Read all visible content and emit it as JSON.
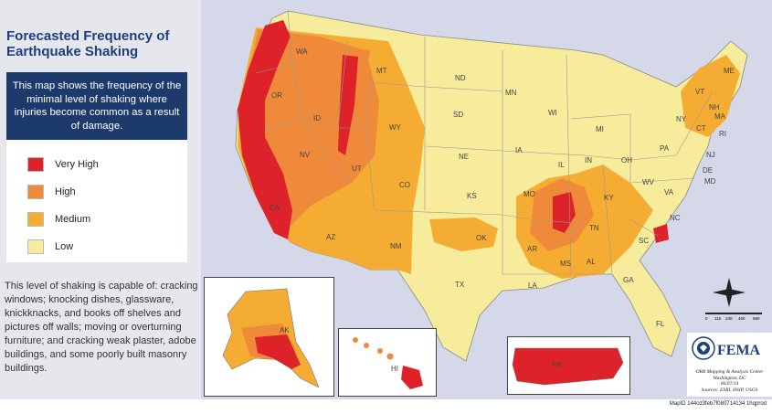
{
  "title": "Forecasted Frequency of Earthquake Shaking",
  "description": "This map shows the frequency of the minimal level of shaking where injuries become common as a result of damage.",
  "legend": [
    {
      "label": "Very High",
      "color": "#dd2229"
    },
    {
      "label": "High",
      "color": "#ef8a3a"
    },
    {
      "label": "Medium",
      "color": "#f5ac33"
    },
    {
      "label": "Low",
      "color": "#f7eb9c"
    }
  ],
  "note": "This level of shaking is capable of: cracking windows; knocking dishes, glassware, knickknacks, and books off shelves and pictures off walls; moving or overturning furniture; and cracking weak plaster, adobe buildings, and some poorly built masonry buildings.",
  "states": [
    "WA",
    "OR",
    "CA",
    "NV",
    "ID",
    "MT",
    "WY",
    "UT",
    "AZ",
    "NM",
    "CO",
    "ND",
    "SD",
    "NE",
    "KS",
    "OK",
    "TX",
    "MN",
    "IA",
    "MO",
    "AR",
    "LA",
    "WI",
    "IL",
    "MS",
    "AL",
    "MI",
    "IN",
    "KY",
    "TN",
    "GA",
    "FL",
    "OH",
    "WV",
    "VA",
    "NC",
    "SC",
    "PA",
    "NY",
    "ME",
    "VT",
    "NH",
    "MA",
    "CT",
    "RI",
    "NJ",
    "DE",
    "MD",
    "AK",
    "HI",
    "PR"
  ],
  "scale_labels": [
    "0",
    "115",
    "230",
    "460",
    "690"
  ],
  "logo": {
    "name": "FEMA",
    "icon": "dhs-seal-icon"
  },
  "credit": [
    "ORR Mapping & Analysis Center",
    "Washington, DC",
    "06/07/14",
    "Sources: ESRI, HSIP, USGS"
  ],
  "map_id": "MapID 144cd3feb7f080714134 1hqprod"
}
